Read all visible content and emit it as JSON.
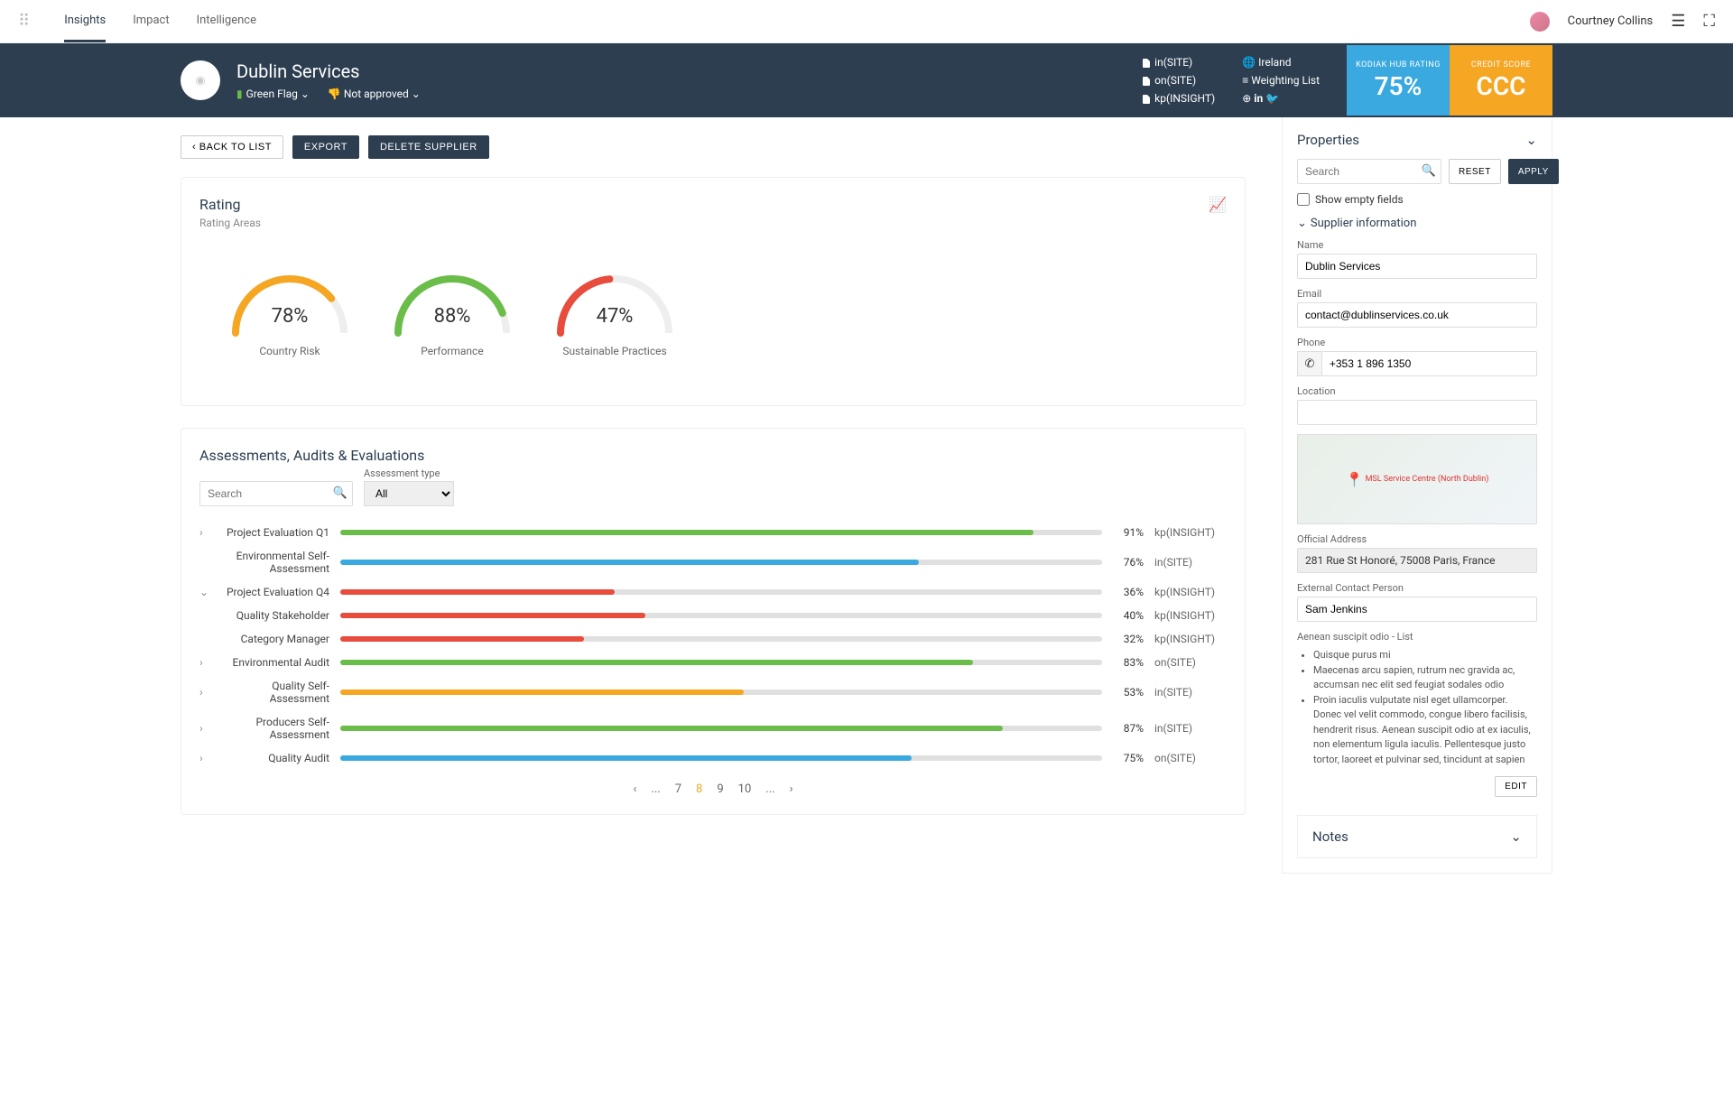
{
  "nav": {
    "items": [
      "Insights",
      "Impact",
      "Intelligence"
    ],
    "active": 0
  },
  "user": {
    "name": "Courtney Collins"
  },
  "hero": {
    "title": "Dublin Services",
    "flag": "Green Flag",
    "approval": "Not approved",
    "tags": [
      {
        "icon": "doc",
        "text": "in(SITE)"
      },
      {
        "icon": "doc",
        "text": "on(SITE)"
      },
      {
        "icon": "doc",
        "text": "kp(INSIGHT)"
      }
    ],
    "meta": [
      {
        "icon": "globe",
        "text": "Ireland"
      },
      {
        "icon": "list",
        "text": "Weighting List"
      }
    ],
    "social": [
      "web",
      "linkedin",
      "twitter"
    ],
    "metrics": [
      {
        "label": "KODIAK HUB RATING",
        "value": "75%",
        "color": "blue"
      },
      {
        "label": "CREDIT SCORE",
        "value": "CCC",
        "color": "orange"
      }
    ]
  },
  "actions": {
    "back": "BACK TO LIST",
    "export": "EXPORT",
    "delete": "DELETE SUPPLIER"
  },
  "rating": {
    "title": "Rating",
    "subtitle": "Rating Areas",
    "gauges": [
      {
        "value": 78,
        "label": "Country Risk",
        "color": "#f5a623"
      },
      {
        "value": 88,
        "label": "Performance",
        "color": "#6bbd4a"
      },
      {
        "value": 47,
        "label": "Sustainable Practices",
        "color": "#e74c3c"
      }
    ]
  },
  "assessments": {
    "title": "Assessments, Audits & Evaluations",
    "search_placeholder": "Search",
    "type_label": "Assessment type",
    "type_value": "All",
    "rows": [
      {
        "chev": "›",
        "name": "Project Evaluation Q1",
        "pct": 91,
        "color": "#6bbd4a",
        "src": "kp(INSIGHT)"
      },
      {
        "chev": "",
        "name": "Environmental Self-Assessment",
        "pct": 76,
        "color": "#3aa9e0",
        "src": "in(SITE)"
      },
      {
        "chev": "⌄",
        "name": "Project Evaluation Q4",
        "pct": 36,
        "color": "#e74c3c",
        "src": "kp(INSIGHT)"
      },
      {
        "chev": "",
        "name": "Quality Stakeholder",
        "pct": 40,
        "color": "#e74c3c",
        "src": "kp(INSIGHT)"
      },
      {
        "chev": "",
        "name": "Category Manager",
        "pct": 32,
        "color": "#e74c3c",
        "src": "kp(INSIGHT)"
      },
      {
        "chev": "›",
        "name": "Environmental Audit",
        "pct": 83,
        "color": "#6bbd4a",
        "src": "on(SITE)"
      },
      {
        "chev": "›",
        "name": "Quality Self-Assessment",
        "pct": 53,
        "color": "#f5a623",
        "src": "in(SITE)"
      },
      {
        "chev": "›",
        "name": "Producers Self-Assessment",
        "pct": 87,
        "color": "#6bbd4a",
        "src": "in(SITE)"
      },
      {
        "chev": "›",
        "name": "Quality Audit",
        "pct": 75,
        "color": "#3aa9e0",
        "src": "on(SITE)"
      }
    ],
    "pager": [
      "‹",
      "...",
      "7",
      "8",
      "9",
      "10",
      "...",
      "›"
    ],
    "pager_current": 3
  },
  "properties": {
    "title": "Properties",
    "search_placeholder": "Search",
    "reset": "RESET",
    "apply": "APPLY",
    "show_empty": "Show empty fields",
    "section": "Supplier information",
    "fields": {
      "name_label": "Name",
      "name": "Dublin Services",
      "email_label": "Email",
      "email": "contact@dublinservices.co.uk",
      "phone_label": "Phone",
      "phone": "+353 1 896 1350",
      "location_label": "Location",
      "location": "",
      "address_label": "Official Address",
      "address": "281 Rue St Honoré, 75008 Paris, France",
      "contact_label": "External Contact Person",
      "contact": "Sam Jenkins"
    },
    "map_pin": "MSL Service Centre (North Dublin)",
    "list_title": "Aenean suscipit odio - List",
    "list": [
      "Quisque purus mi",
      "Maecenas arcu sapien, rutrum nec gravida ac, accumsan nec elit sed feugiat sodales odio",
      "Proin iaculis vulputate nisl eget ullamcorper. Donec vel velit commodo, congue libero facilisis, hendrerit risus. Aenean suscipit odio at ex iaculis, non elementum ligula iaculis. Pellentesque justo tortor, laoreet et pulvinar sed, tincidunt at sapien"
    ],
    "edit": "EDIT"
  },
  "notes": {
    "title": "Notes"
  }
}
